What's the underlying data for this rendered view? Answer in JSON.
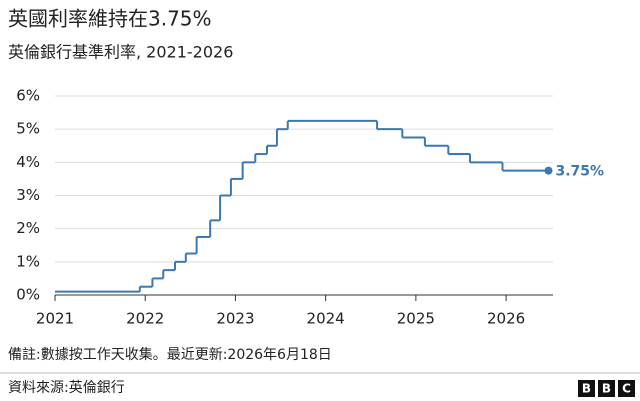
{
  "chart_data": {
    "type": "line",
    "drawstyle": "steps-post",
    "title": "英國利率維持在3.75%",
    "subtitle": "英倫銀行基準利率, 2021-2026",
    "note": "備註:數據按工作天收集。最近更新:2026年6月18日",
    "source": "資料來源:英倫銀行",
    "logo": [
      "B",
      "B",
      "C"
    ],
    "end_label": "3.75%",
    "color": "#3b78b1",
    "grid": true,
    "x": [
      2021.0,
      2021.94,
      2022.08,
      2022.2,
      2022.33,
      2022.45,
      2022.57,
      2022.72,
      2022.83,
      2022.95,
      2023.08,
      2023.22,
      2023.35,
      2023.46,
      2023.58,
      2024.57,
      2024.85,
      2025.1,
      2025.36,
      2025.6,
      2025.96,
      2026.47
    ],
    "values": [
      0.1,
      0.25,
      0.5,
      0.75,
      1.0,
      1.25,
      1.75,
      2.25,
      3.0,
      3.5,
      4.0,
      4.25,
      4.5,
      5.0,
      5.25,
      5.0,
      4.75,
      4.5,
      4.25,
      4.0,
      3.75,
      3.75
    ],
    "xlim": [
      2021,
      2026.52
    ],
    "xticks": [
      2021,
      2022,
      2023,
      2024,
      2025,
      2026
    ],
    "ylim": [
      0,
      6
    ],
    "yticks": [
      {
        "value": 0,
        "label": "0%"
      },
      {
        "value": 1,
        "label": "1%"
      },
      {
        "value": 2,
        "label": "2%"
      },
      {
        "value": 3,
        "label": "3%"
      },
      {
        "value": 4,
        "label": "4%"
      },
      {
        "value": 5,
        "label": "5%"
      },
      {
        "value": 6,
        "label": "6%"
      }
    ]
  }
}
